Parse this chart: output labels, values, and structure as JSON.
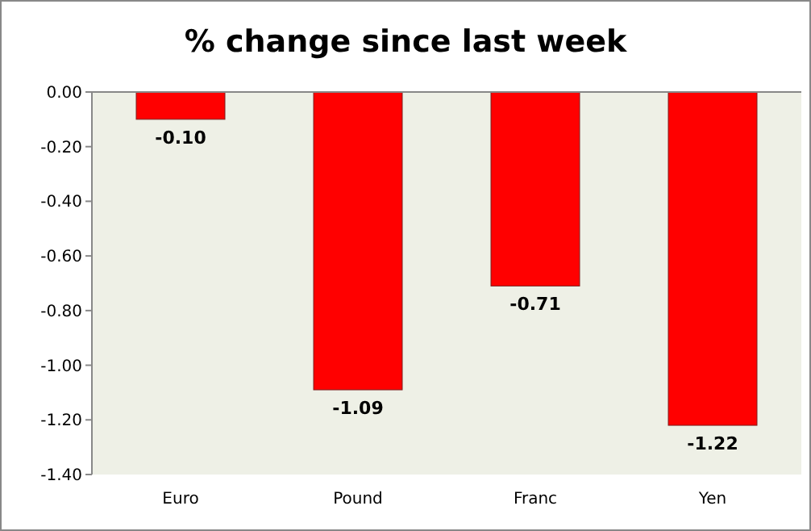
{
  "chart_data": {
    "type": "bar",
    "title": "% change since last week",
    "categories": [
      "Euro",
      "Pound",
      "Franc",
      "Yen"
    ],
    "values": [
      -0.1,
      -1.09,
      -0.71,
      -1.22
    ],
    "color": "#ff0000",
    "value_labels": [
      "-0.10",
      "-1.09",
      "-0.71",
      "-1.22"
    ],
    "ylim": [
      -1.4,
      0
    ],
    "yticks": [
      {
        "value": 0,
        "label": "0.00"
      },
      {
        "value": -0.2,
        "label": "-0.20"
      },
      {
        "value": -0.4,
        "label": "-0.40"
      },
      {
        "value": -0.6,
        "label": "-0.60"
      },
      {
        "value": -0.8,
        "label": "-0.80"
      },
      {
        "value": -1.0,
        "label": "-1.00"
      },
      {
        "value": -1.2,
        "label": "-1.20"
      },
      {
        "value": -1.4,
        "label": "-1.40"
      }
    ],
    "grid": false
  }
}
